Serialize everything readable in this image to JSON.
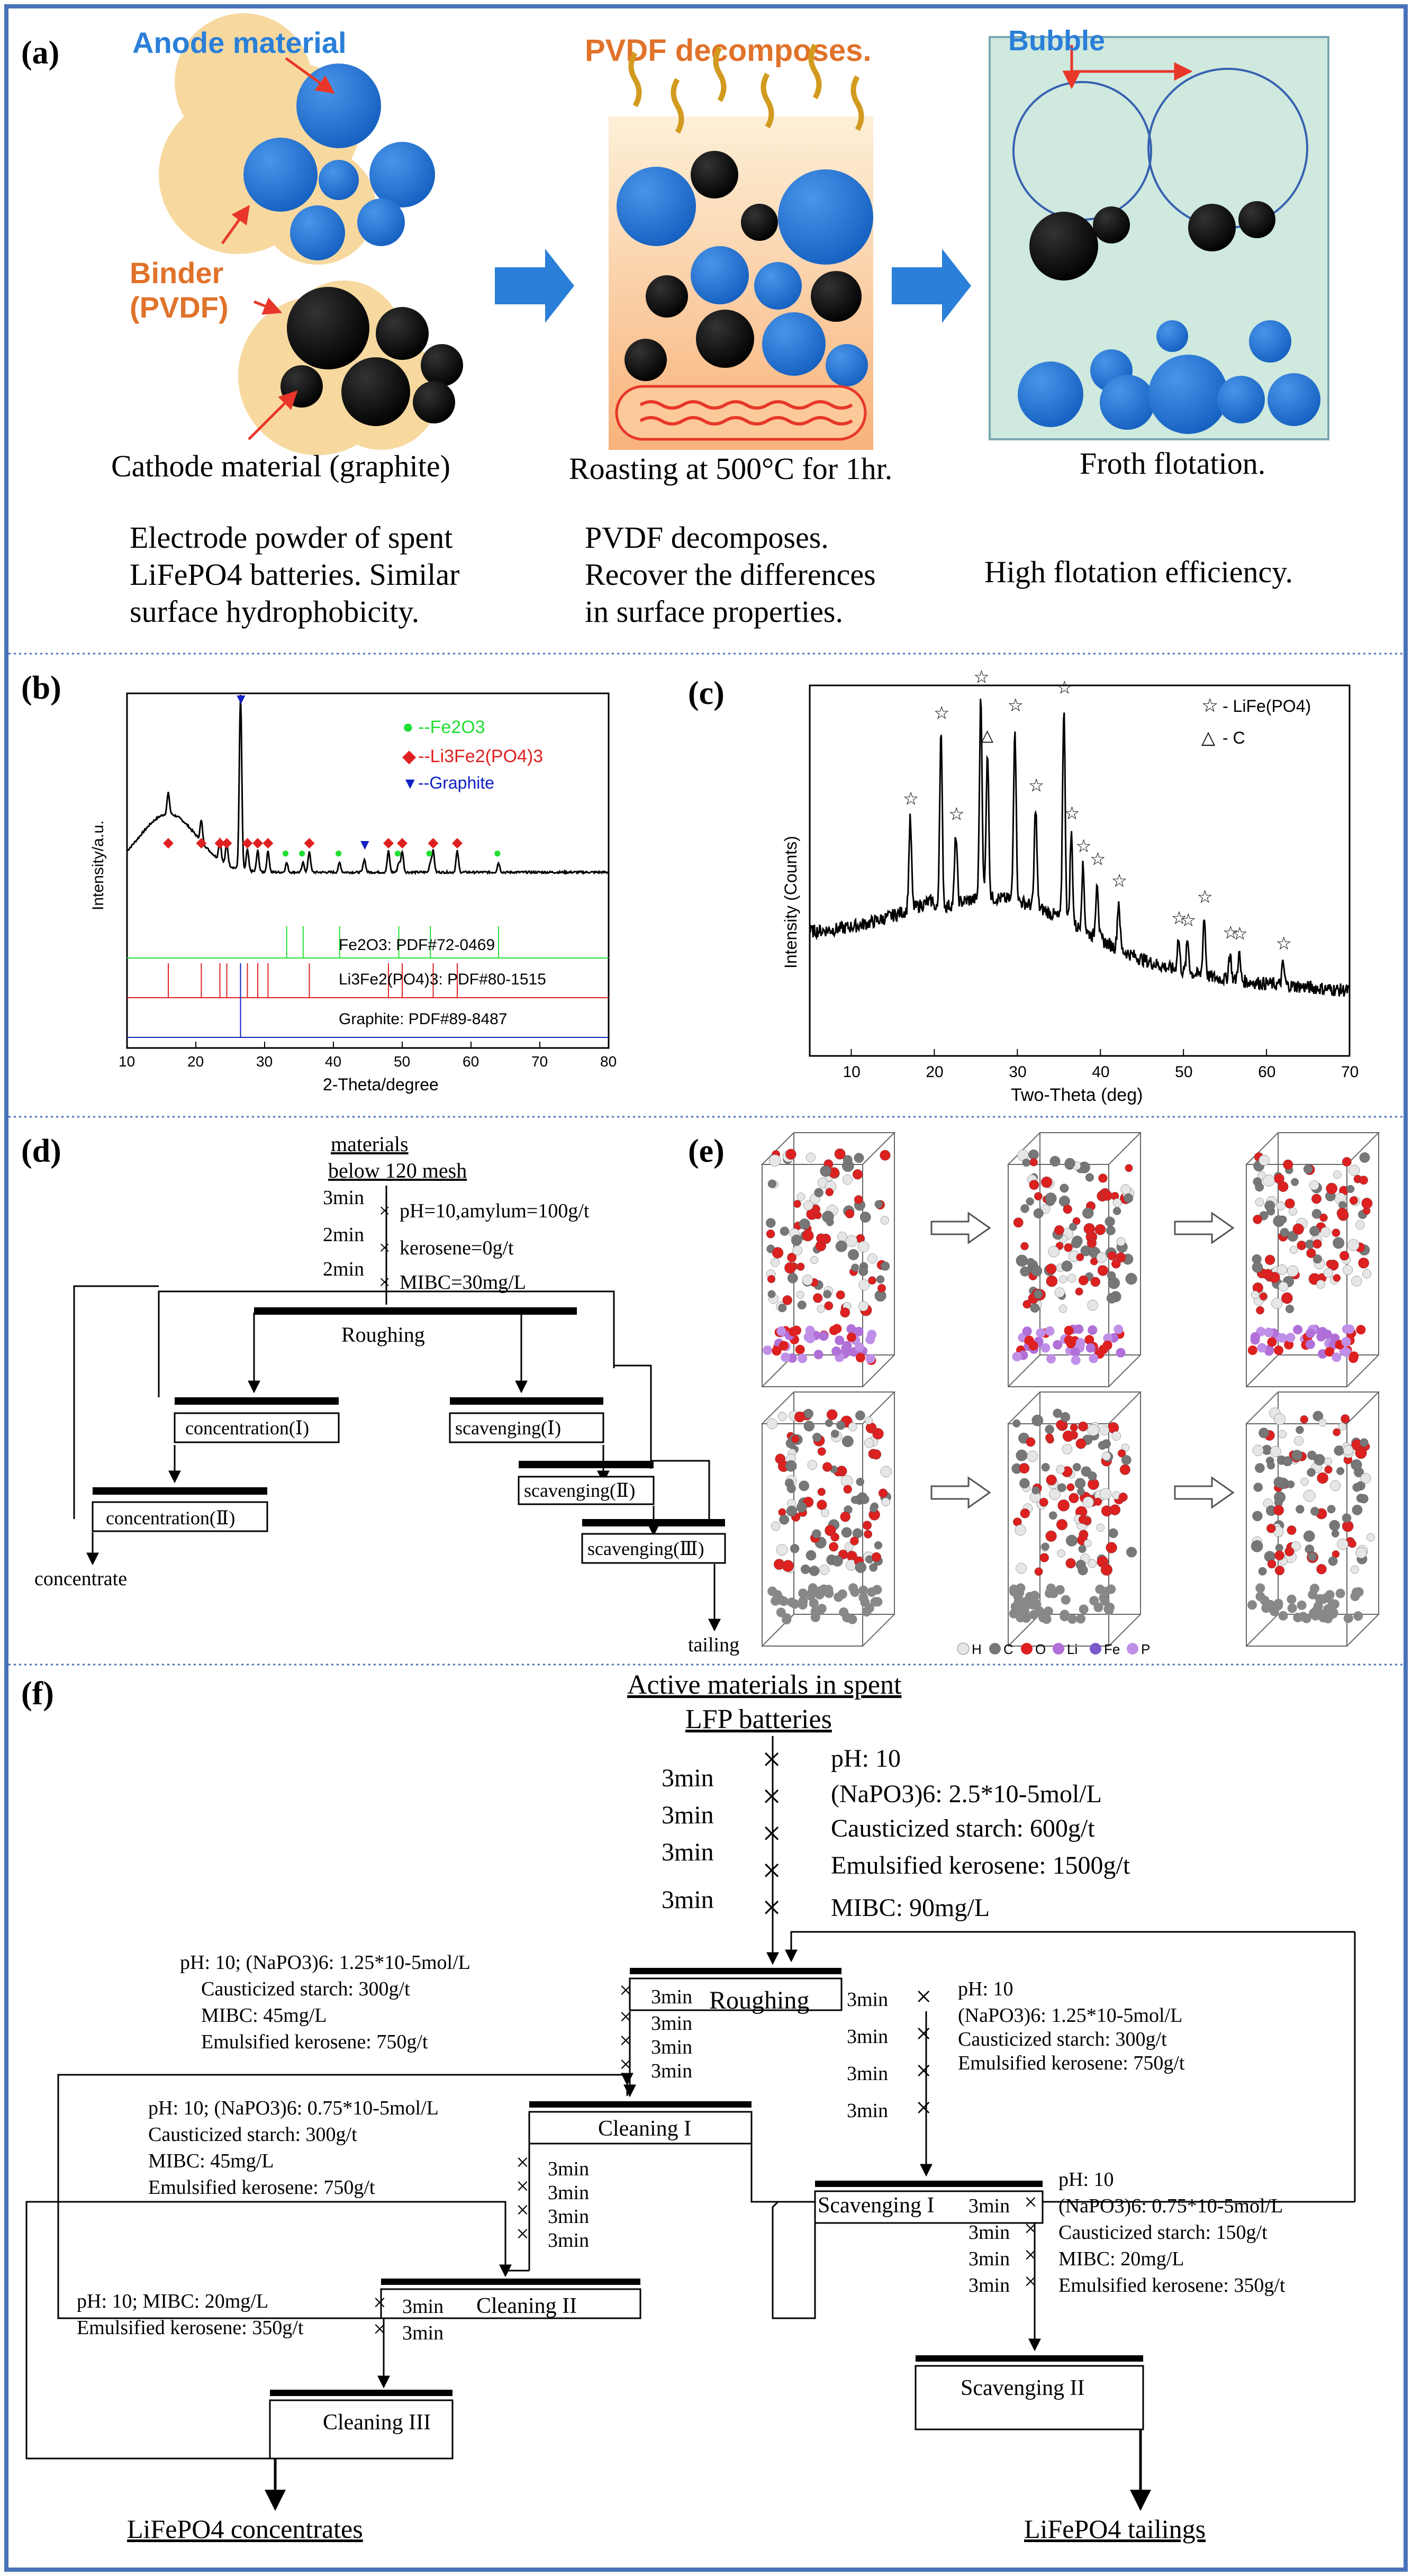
{
  "colors": {
    "frame": "#4a72b8",
    "blue_particle": "#1f6fd1",
    "binder": "#f7d9a0",
    "orange_text": "#e0722a",
    "red_arrow": "#e8372a",
    "arrow_blue": "#2a7fd8",
    "flotation_bg": "#cfe9df",
    "xrd_fe2o3": "#22dd33",
    "xrd_li3": "#e02020",
    "xrd_graphite": "#1020c0",
    "atom_h": "#e6e6e6",
    "atom_c": "#777777",
    "atom_o": "#dd2020",
    "atom_li": "#b070d8",
    "atom_fe": "#7a5ac8",
    "atom_p": "#c090e8"
  },
  "panel_a": {
    "label": "(a)",
    "anode_label": "Anode material",
    "binder_label_1": "Binder",
    "binder_label_2": "(PVDF)",
    "pvdf_title": "PVDF decomposes.",
    "bubble_label": "Bubble",
    "step1_caption": "Cathode material (graphite)",
    "step2_caption": "Roasting at 500°C for 1hr.",
    "step3_caption": "Froth flotation.",
    "desc1": [
      "Electrode powder of spent",
      "LiFePO4 batteries. Similar",
      "surface hydrophobicity."
    ],
    "desc2": [
      "PVDF decomposes.",
      "Recover the differences",
      "in surface properties."
    ],
    "desc3": "High flotation efficiency."
  },
  "panel_b": {
    "label": "(b)",
    "chart_data": {
      "type": "line",
      "title": "",
      "xlabel": "2-Theta/degree",
      "ylabel": "Intensity/a.u.",
      "xlim": [
        10,
        80
      ],
      "x_ticks": [
        10,
        20,
        30,
        40,
        50,
        60,
        70,
        80
      ],
      "legend": [
        {
          "marker": "●",
          "name": "--Fe2O3"
        },
        {
          "marker": "◆",
          "name": "--Li3Fe2(PO4)3"
        },
        {
          "marker": "▼",
          "name": "--Graphite"
        }
      ],
      "graphite_peaks": [
        26.5,
        44.5
      ],
      "li3fe2_peaks": [
        16,
        20.8,
        23.5,
        24.5,
        27.5,
        29,
        30.5,
        36.5,
        48,
        50,
        54.5,
        58
      ],
      "fe2o3_peaks": [
        33.2,
        35.6,
        40.9,
        49.5,
        54.1,
        64
      ]
    },
    "ref_fe2o3": "Fe2O3: PDF#72-0469",
    "ref_li3": "Li3Fe2(PO4)3: PDF#80-1515",
    "ref_graphite": "Graphite: PDF#89-8487"
  },
  "panel_c": {
    "label": "(c)",
    "chart_data": {
      "type": "line",
      "xlabel": "Two-Theta (deg)",
      "ylabel": "Intensity (Counts)",
      "xlim": [
        5,
        70
      ],
      "x_ticks": [
        10,
        20,
        30,
        40,
        50,
        60,
        70
      ],
      "legend": [
        {
          "marker": "☆",
          "name": "- LiFe(PO4)"
        },
        {
          "marker": "△",
          "name": "- C"
        }
      ],
      "star_peaks": [
        17.1,
        20.8,
        22.6,
        25.6,
        29.7,
        32.2,
        35.6,
        36.5,
        37.9,
        39.6,
        42.2,
        49.4,
        50.5,
        52.5,
        55.6,
        56.7,
        62
      ],
      "triangle_peaks": [
        26.4
      ]
    }
  },
  "panel_d": {
    "label": "(d)",
    "feed_1": "materials",
    "feed_2": "below 120 mesh",
    "reagents": [
      {
        "time": "3min",
        "text": "pH=10,amylum=100g/t"
      },
      {
        "time": "2min",
        "text": "kerosene=0g/t"
      },
      {
        "time": "2min",
        "text": "MIBC=30mg/L"
      }
    ],
    "roughing": "Roughing",
    "conc1": "concentration(Ⅰ)",
    "conc2": "concentration(Ⅱ)",
    "scav1": "scavenging(Ⅰ)",
    "scav2": "scavenging(Ⅱ)",
    "scav3": "scavenging(Ⅲ)",
    "concentrate": "concentrate",
    "tailing": "tailing"
  },
  "panel_e": {
    "label": "(e)",
    "legend": [
      "H",
      "C",
      "O",
      "Li",
      "Fe",
      "P"
    ]
  },
  "panel_f": {
    "label": "(f)",
    "feed_1": "Active materials in spent",
    "feed_2": "LFP batteries",
    "main_reagents": [
      {
        "time": "3min",
        "text": "pH: 10"
      },
      {
        "time": "3min",
        "text": "(NaPO3)6: 2.5*10-5mol/L"
      },
      {
        "time": "3min",
        "text": "Causticized starch: 600g/t"
      },
      {
        "time": "3min",
        "text": "Emulsified kerosene: 1500g/t"
      },
      {
        "time": "",
        "text": "MIBC: 90mg/L"
      }
    ],
    "roughing": "Roughing",
    "roughing_times_left": [
      "3min",
      "3min",
      "3min",
      "3min"
    ],
    "roughing_times_right": [
      "3min",
      "3min",
      "3min",
      "3min"
    ],
    "clean1_reagents": [
      "pH: 10; (NaPO3)6: 1.25*10-5mol/L",
      "Causticized starch: 300g/t",
      "MIBC: 45mg/L",
      "Emulsified kerosene: 750g/t"
    ],
    "scav1_reagents": [
      "pH: 10",
      "(NaPO3)6: 1.25*10-5mol/L",
      "Causticized starch: 300g/t",
      "Emulsified kerosene: 750g/t"
    ],
    "cleaning1": "Cleaning I",
    "clean1_times": [
      "3min",
      "3min",
      "3min",
      "3min"
    ],
    "clean2_reagents": [
      "pH: 10; (NaPO3)6: 0.75*10-5mol/L",
      "Causticized starch: 300g/t",
      "MIBC: 45mg/L",
      "Emulsified kerosene: 750g/t"
    ],
    "scavenging1": "Scavenging I",
    "scav2_reagents": [
      "pH: 10",
      "(NaPO3)6: 0.75*10-5mol/L",
      "Causticized starch: 150g/t",
      "MIBC: 20mg/L",
      "Emulsified kerosene: 350g/t"
    ],
    "scav2_times": [
      "3min",
      "3min",
      "3min",
      "3min"
    ],
    "cleaning2": "Cleaning II",
    "clean3_reagents": [
      "pH: 10; MIBC: 20mg/L",
      "Emulsified kerosene: 350g/t"
    ],
    "clean3_times": [
      "3min",
      "3min"
    ],
    "cleaning3": "Cleaning III",
    "scavenging2": "Scavenging II",
    "concentrates": "LiFePO4 concentrates",
    "tailings": "LiFePO4 tailings"
  }
}
